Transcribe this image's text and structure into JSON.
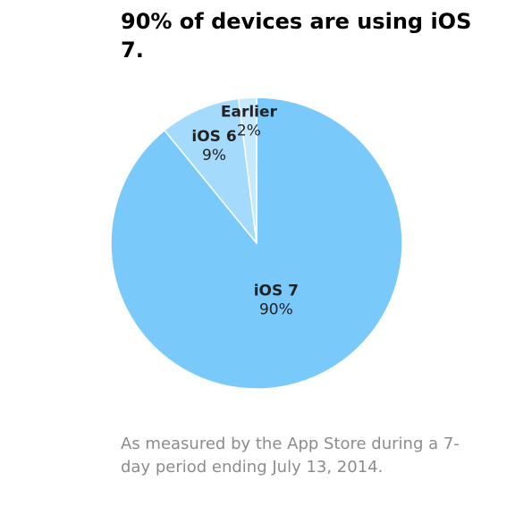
{
  "title": "90% of devices are using iOS 7.",
  "footnote": "As measured by the App Store during a 7-day period ending July 13, 2014.",
  "chart_data": {
    "type": "pie",
    "title": "90% of devices are using iOS 7.",
    "slices": [
      {
        "label": "iOS 7",
        "value": 90,
        "value_label": "90%",
        "color": "#79c9fb"
      },
      {
        "label": "iOS 6",
        "value": 9,
        "value_label": "9%",
        "color": "#a4dbfd"
      },
      {
        "label": "Earlier",
        "value": 2,
        "value_label": "2%",
        "color": "#c6e8fd"
      }
    ],
    "legend": "none",
    "start": "top",
    "direction": "clockwise"
  }
}
